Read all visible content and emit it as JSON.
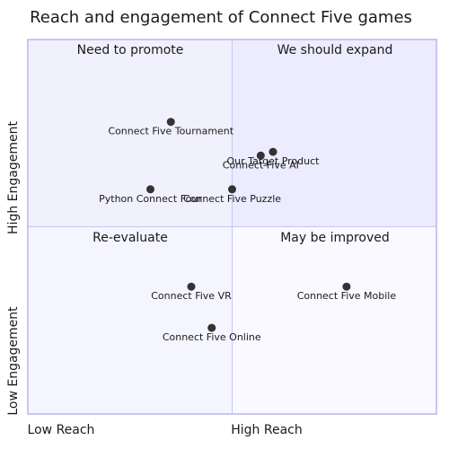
{
  "chart_data": {
    "type": "scatter",
    "title": "Reach and engagement of Connect Five games",
    "x_axis": {
      "low_label": "Low Reach",
      "high_label": "High Reach",
      "range": [
        0,
        1
      ]
    },
    "y_axis": {
      "low_label": "Low Engagement",
      "high_label": "High Engagement",
      "range": [
        0,
        1
      ]
    },
    "quadrants": {
      "q1": {
        "label": "We should expand",
        "color": "#ececfe"
      },
      "q2": {
        "label": "Need to promote",
        "color": "#f1f1fe"
      },
      "q3": {
        "label": "Re-evaluate",
        "color": "#f5f5ff"
      },
      "q4": {
        "label": "May be improved",
        "color": "#f9f9ff"
      }
    },
    "points": [
      {
        "name": "Connect Five Tournament",
        "x": 0.35,
        "y": 0.78
      },
      {
        "name": "Connect Five AI",
        "x": 0.57,
        "y": 0.69
      },
      {
        "name": "Our Target Product",
        "x": 0.6,
        "y": 0.7
      },
      {
        "name": "Python Connect Four",
        "x": 0.3,
        "y": 0.6
      },
      {
        "name": "Connect Five Puzzle",
        "x": 0.5,
        "y": 0.6
      },
      {
        "name": "Connect Five VR",
        "x": 0.4,
        "y": 0.34
      },
      {
        "name": "Connect Five Mobile",
        "x": 0.78,
        "y": 0.34
      },
      {
        "name": "Connect Five Online",
        "x": 0.45,
        "y": 0.23
      }
    ],
    "grid": false,
    "legend": "none"
  }
}
